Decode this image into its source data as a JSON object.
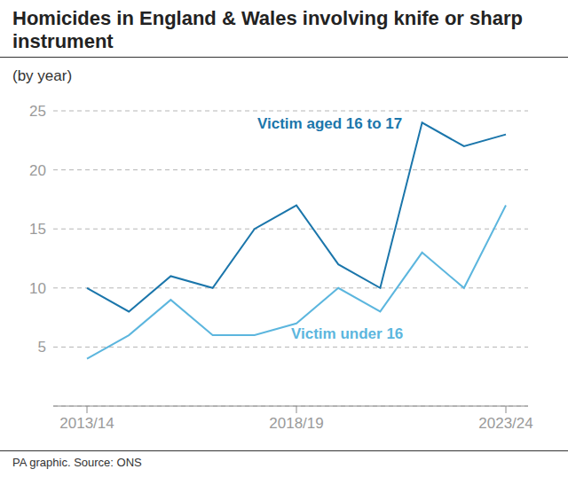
{
  "chart_data": {
    "type": "line",
    "title": "Homicides in England & Wales involving knife or sharp instrument",
    "subtitle": "(by year)",
    "source": "PA graphic. Source: ONS",
    "categories": [
      "2013/14",
      null,
      null,
      null,
      null,
      "2018/19",
      null,
      null,
      null,
      null,
      "2023/24"
    ],
    "series": [
      {
        "name": "Victim aged 16 to 17",
        "color": "#1b76ab",
        "values": [
          10,
          8,
          11,
          10,
          15,
          17,
          12,
          10,
          24,
          22,
          23
        ]
      },
      {
        "name": "Victim under 16",
        "color": "#5cb6de",
        "values": [
          4,
          6,
          9,
          6,
          6,
          7,
          10,
          8,
          13,
          10,
          17
        ]
      }
    ],
    "ylim": [
      0,
      25
    ],
    "yticks": [
      5,
      10,
      15,
      20,
      25
    ],
    "grid": true
  }
}
